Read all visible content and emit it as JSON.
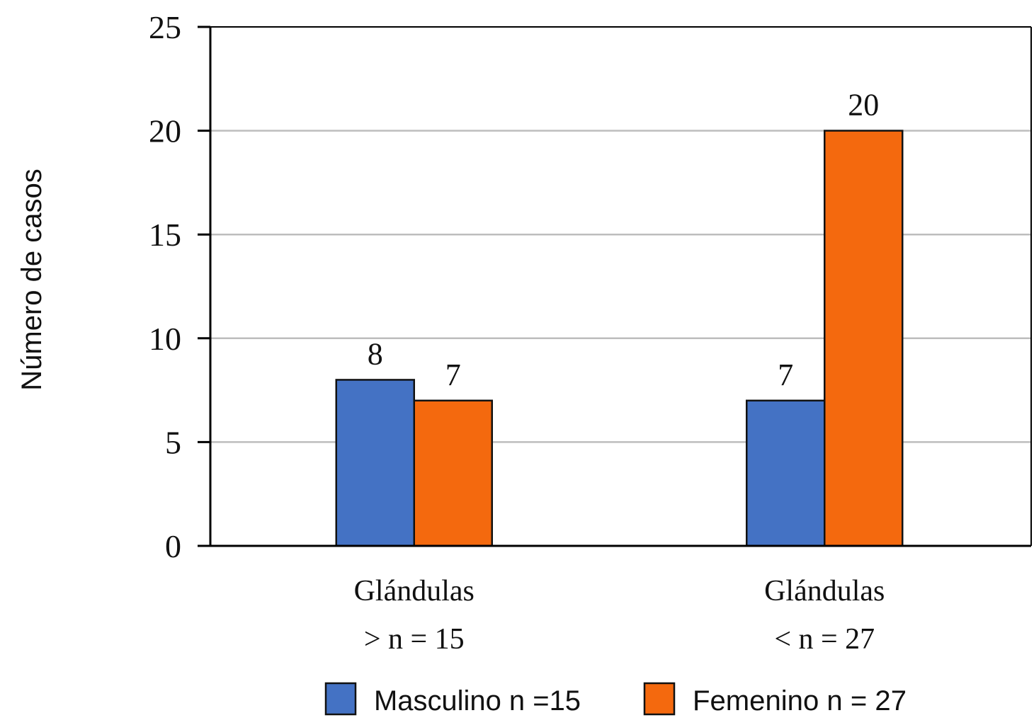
{
  "chart_data": {
    "type": "bar",
    "title": "",
    "xlabel": "",
    "ylabel": "Número de casos",
    "ylim": [
      0,
      25
    ],
    "yticks": [
      0,
      5,
      10,
      15,
      20,
      25
    ],
    "grid": true,
    "legend_position": "bottom",
    "categories": [
      [
        "Glándulas",
        "> n = 15"
      ],
      [
        "Glándulas",
        "< n = 27"
      ]
    ],
    "series": [
      {
        "name": "Masculino n =15",
        "color": "#4472C4",
        "values": [
          8,
          7
        ]
      },
      {
        "name": "Femenino n = 27",
        "color": "#F4690E",
        "values": [
          7,
          20
        ]
      }
    ],
    "data_labels": [
      [
        "8",
        "7"
      ],
      [
        "7",
        "20"
      ]
    ]
  }
}
